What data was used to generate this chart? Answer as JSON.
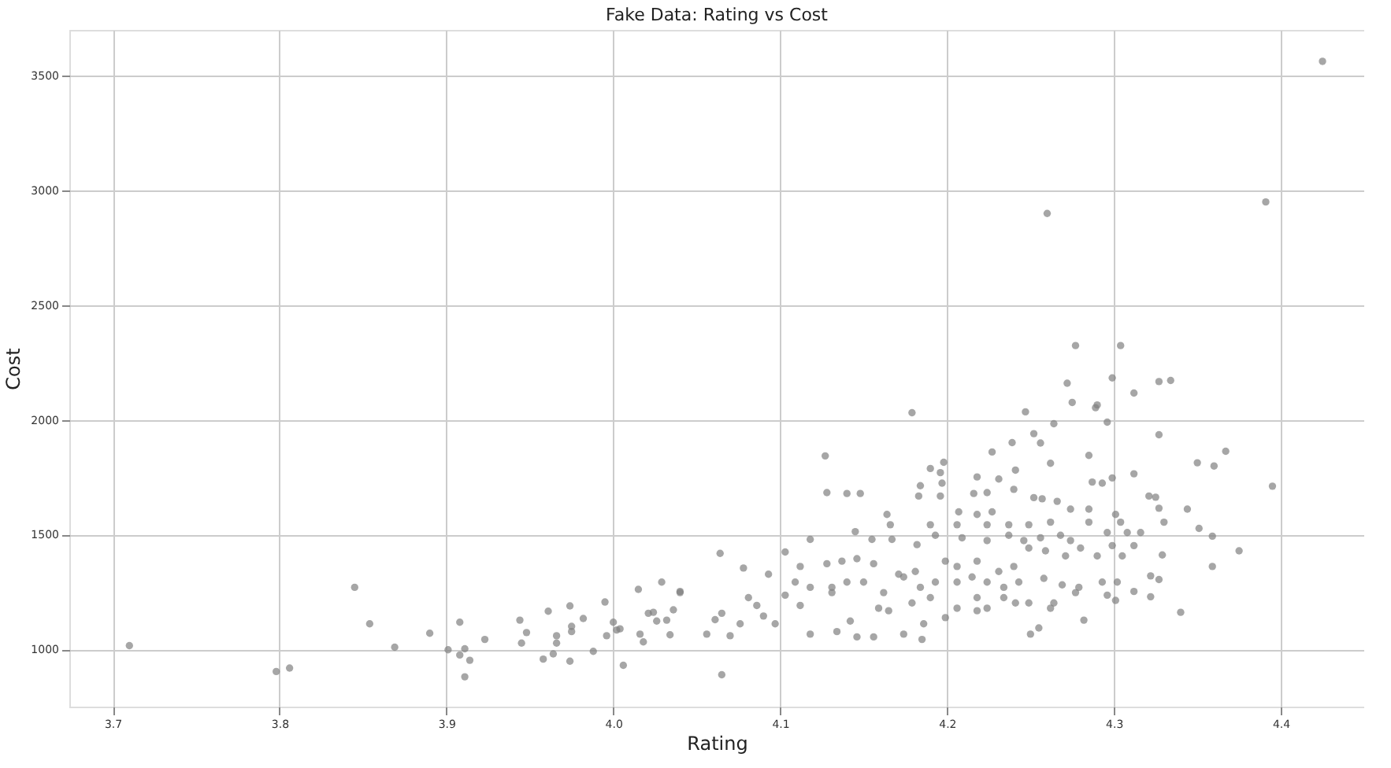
{
  "chart_data": {
    "type": "scatter",
    "title": "Fake Data: Rating vs Cost",
    "xlabel": "Rating",
    "ylabel": "Cost",
    "xlim": [
      3.674,
      4.45
    ],
    "ylim": [
      750,
      3700
    ],
    "xticks": [
      3.7,
      3.8,
      3.9,
      {
        "value": 4,
        "label": "4.0"
      },
      4.1,
      4.2,
      4.3,
      4.4
    ],
    "yticks": [
      1000,
      1500,
      2000,
      2500,
      3000,
      3500
    ],
    "grid": true,
    "marker": "circle",
    "series": [
      {
        "color": "#808080",
        "x": [
          3.71,
          3.798,
          3.806,
          3.845,
          3.854,
          3.869,
          3.89,
          3.901,
          3.908,
          3.908,
          3.911,
          3.911,
          3.914,
          3.923,
          3.944,
          3.945,
          3.948,
          3.958,
          3.961,
          3.964,
          3.966,
          3.966,
          3.974,
          3.974,
          3.975,
          3.975,
          3.982,
          3.988,
          3.995,
          3.996,
          4.0,
          4.002,
          4.004,
          4.006,
          4.015,
          4.016,
          4.018,
          4.021,
          4.024,
          4.026,
          4.029,
          4.032,
          4.034,
          4.036,
          4.04,
          4.425,
          4.391,
          4.26,
          4.277,
          4.304,
          4.299,
          4.327,
          4.334,
          4.272,
          4.312,
          4.275,
          4.29,
          4.289,
          4.247,
          4.179,
          4.296,
          4.264,
          4.252,
          4.327,
          4.256,
          4.239,
          4.227,
          4.367,
          4.127,
          4.285,
          4.35,
          4.36,
          4.262,
          4.198,
          4.19,
          4.241,
          4.312,
          4.218,
          4.196,
          4.231,
          4.395,
          4.299,
          4.128,
          4.14,
          4.148,
          4.184,
          4.183,
          4.197,
          4.196,
          4.287,
          4.293,
          4.216,
          4.224,
          4.24,
          4.252,
          4.257,
          4.266,
          4.321,
          4.325,
          4.344,
          4.164,
          4.207,
          4.218,
          4.227,
          4.274,
          4.285,
          4.301,
          4.327,
          4.166,
          4.19,
          4.206,
          4.224,
          4.237,
          4.249,
          4.262,
          4.285,
          4.304,
          4.33,
          4.351,
          4.145,
          4.155,
          4.167,
          4.182,
          4.193,
          4.209,
          4.224,
          4.237,
          4.246,
          4.256,
          4.268,
          4.274,
          4.296,
          4.308,
          4.316,
          4.359,
          4.375,
          4.118,
          4.064,
          4.103,
          4.078,
          4.112,
          4.128,
          4.137,
          4.146,
          4.156,
          4.171,
          4.181,
          4.199,
          4.206,
          4.218,
          4.231,
          4.24,
          4.249,
          4.259,
          4.271,
          4.28,
          4.29,
          4.299,
          4.305,
          4.312,
          4.329,
          4.359,
          4.322,
          4.093,
          4.109,
          4.118,
          4.131,
          4.14,
          4.15,
          4.162,
          4.174,
          4.184,
          4.193,
          4.206,
          4.215,
          4.224,
          4.234,
          4.243,
          4.258,
          4.269,
          4.279,
          4.293,
          4.302,
          4.312,
          4.322,
          4.327,
          4.04,
          4.061,
          4.065,
          4.07,
          4.056,
          4.076,
          4.081,
          4.086,
          4.09,
          4.097,
          4.103,
          4.112,
          4.118,
          4.131,
          4.134,
          4.142,
          4.146,
          4.156,
          4.159,
          4.165,
          4.174,
          4.185,
          4.186,
          4.179,
          4.19,
          4.199,
          4.206,
          4.218,
          4.218,
          4.224,
          4.234,
          4.241,
          4.249,
          4.25,
          4.255,
          4.262,
          4.277,
          4.282,
          4.264,
          4.296,
          4.301,
          4.34,
          4.065
        ],
        "values": [
          1016,
          903,
          918,
          1270,
          1111,
          1009,
          1070,
          998,
          1118,
          975,
          1002,
          880,
          952,
          1043,
          1127,
          1027,
          1073,
          957,
          1166,
          980,
          1059,
          1027,
          1189,
          948,
          1100,
          1077,
          1134,
          991,
          1206,
          1059,
          1118,
          1084,
          1089,
          930,
          1261,
          1066,
          1032,
          1157,
          1161,
          1123,
          1293,
          1127,
          1063,
          1172,
          1252,
          3563,
          2950,
          2900,
          2324,
          2324,
          2183,
          2167,
          2172,
          2160,
          2117,
          2076,
          2065,
          2053,
          2035,
          2031,
          1990,
          1983,
          1940,
          1935,
          1899,
          1901,
          1860,
          1863,
          1843,
          1845,
          1813,
          1799,
          1811,
          1815,
          1788,
          1781,
          1765,
          1751,
          1770,
          1742,
          1711,
          1747,
          1683,
          1679,
          1679,
          1713,
          1668,
          1724,
          1668,
          1729,
          1724,
          1679,
          1683,
          1697,
          1661,
          1656,
          1645,
          1668,
          1663,
          1611,
          1588,
          1599,
          1588,
          1599,
          1611,
          1611,
          1588,
          1615,
          1543,
          1543,
          1543,
          1543,
          1543,
          1543,
          1554,
          1554,
          1554,
          1554,
          1527,
          1513,
          1479,
          1479,
          1456,
          1497,
          1486,
          1474,
          1497,
          1474,
          1486,
          1497,
          1474,
          1509,
          1509,
          1509,
          1493,
          1429,
          1479,
          1418,
          1424,
          1354,
          1361,
          1373,
          1384,
          1395,
          1373,
          1327,
          1339,
          1384,
          1361,
          1384,
          1339,
          1361,
          1441,
          1429,
          1407,
          1441,
          1407,
          1452,
          1407,
          1452,
          1411,
          1361,
          1320,
          1327,
          1293,
          1270,
          1270,
          1293,
          1293,
          1247,
          1315,
          1270,
          1293,
          1293,
          1315,
          1293,
          1270,
          1293,
          1309,
          1281,
          1270,
          1293,
          1293,
          1252,
          1229,
          1304,
          1247,
          1129,
          1157,
          1059,
          1066,
          1111,
          1225,
          1191,
          1145,
          1111,
          1236,
          1191,
          1066,
          1247,
          1077,
          1123,
          1054,
          1054,
          1179,
          1168,
          1066,
          1043,
          1111,
          1202,
          1225,
          1138,
          1179,
          1168,
          1225,
          1179,
          1225,
          1202,
          1202,
          1066,
          1093,
          1179,
          1247,
          1127,
          1202,
          1236,
          1213,
          1161,
          889
        ]
      }
    ]
  }
}
